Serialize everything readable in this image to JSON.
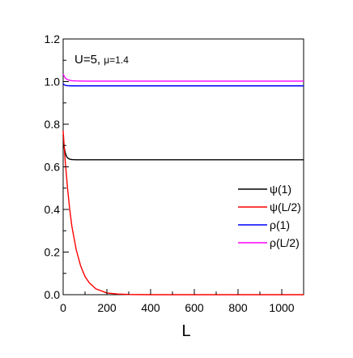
{
  "chart_data": {
    "type": "line",
    "annotation": {
      "prefix": "U=5, ",
      "mu": "μ=1.4"
    },
    "xlabel": "L",
    "ylabel": "",
    "xlim": [
      0,
      1100
    ],
    "ylim": [
      0.0,
      1.2
    ],
    "xticks": [
      0,
      200,
      400,
      600,
      800,
      1000
    ],
    "xtick_labels": [
      "0",
      "200",
      "400",
      "600",
      "800",
      "1000"
    ],
    "yticks": [
      0.0,
      0.2,
      0.4,
      0.6,
      0.8,
      1.0,
      1.2
    ],
    "ytick_labels": [
      "0.0",
      "0.2",
      "0.4",
      "0.6",
      "0.8",
      "1.0",
      "1.2"
    ],
    "grid": false,
    "legend_position": "right",
    "series": [
      {
        "name": "ψ(1)",
        "color": "#000000",
        "x": [
          0,
          2,
          5,
          10,
          15,
          20,
          30,
          40,
          60,
          100,
          200,
          400,
          600,
          800,
          1000,
          1100
        ],
        "y": [
          0.75,
          0.72,
          0.69,
          0.665,
          0.65,
          0.642,
          0.636,
          0.634,
          0.633,
          0.633,
          0.633,
          0.633,
          0.633,
          0.633,
          0.633,
          0.633
        ]
      },
      {
        "name": "ψ(L/2)",
        "color": "#ff0000",
        "x": [
          0,
          5,
          10,
          20,
          30,
          40,
          60,
          80,
          100,
          120,
          150,
          200,
          250,
          300,
          400,
          600,
          800,
          1000,
          1100
        ],
        "y": [
          0.77,
          0.69,
          0.62,
          0.5,
          0.4,
          0.32,
          0.21,
          0.135,
          0.085,
          0.055,
          0.027,
          0.008,
          0.003,
          0.001,
          0.0,
          0.0,
          0.0,
          0.0,
          0.0
        ]
      },
      {
        "name": "ρ(1)",
        "color": "#0000ff",
        "x": [
          0,
          5,
          10,
          20,
          40,
          100,
          200,
          400,
          600,
          800,
          1000,
          1100
        ],
        "y": [
          0.99,
          0.985,
          0.982,
          0.981,
          0.98,
          0.98,
          0.98,
          0.98,
          0.98,
          0.98,
          0.98,
          0.98
        ]
      },
      {
        "name": "ρ(L/2)",
        "color": "#ff00ff",
        "x": [
          0,
          5,
          10,
          20,
          30,
          40,
          60,
          100,
          200,
          400,
          600,
          800,
          1000,
          1100
        ],
        "y": [
          1.035,
          1.025,
          1.016,
          1.009,
          1.006,
          1.004,
          1.003,
          1.002,
          1.002,
          1.002,
          1.002,
          1.002,
          1.002,
          1.002
        ]
      }
    ]
  }
}
